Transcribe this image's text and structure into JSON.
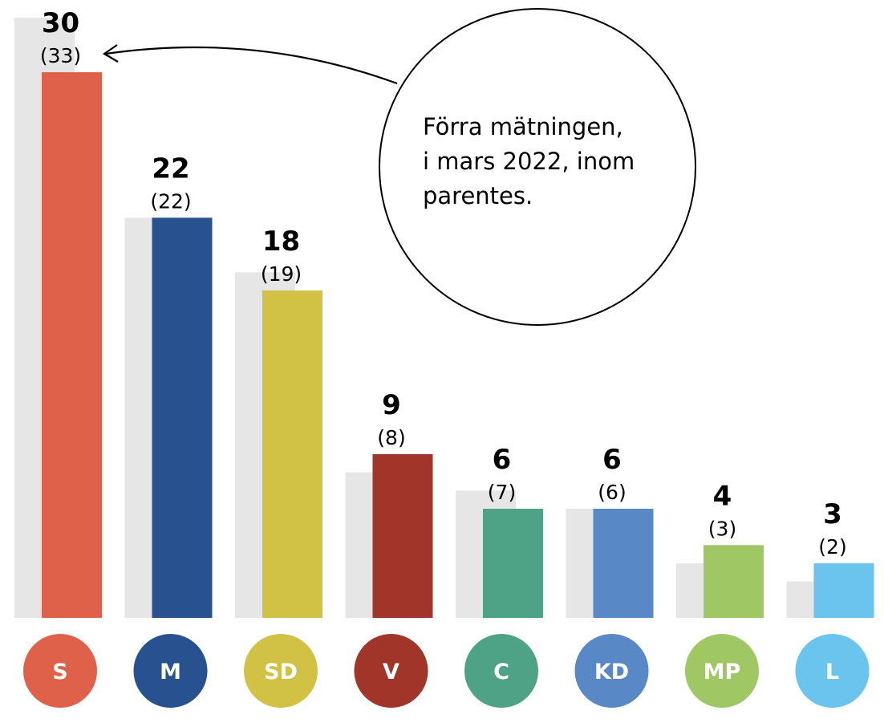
{
  "chart_data": {
    "type": "bar",
    "categories": [
      "S",
      "M",
      "SD",
      "V",
      "C",
      "KD",
      "MP",
      "L"
    ],
    "series": [
      {
        "values": [
          30,
          22,
          18,
          9,
          6,
          6,
          4,
          3
        ]
      },
      {
        "values": [
          33,
          22,
          19,
          8,
          7,
          6,
          3,
          2
        ]
      }
    ],
    "current_labels": [
      "30",
      "22",
      "18",
      "9",
      "6",
      "6",
      "4",
      "3"
    ],
    "previous_labels": [
      "(33)",
      "(22)",
      "(19)",
      "(8)",
      "(7)",
      "(6)",
      "(3)",
      "(2)"
    ],
    "party_colors": [
      "#e0614a",
      "#27528f",
      "#d1c145",
      "#a1352a",
      "#4ea387",
      "#5889c6",
      "#9fc865",
      "#6ac4ee"
    ],
    "previous_color": "#e6e6e6",
    "ylim": [
      0,
      33
    ],
    "grid": false,
    "legend": "none"
  },
  "annotation": {
    "lines": [
      "Förra mätningen,",
      "i mars 2022, inom",
      "parentes."
    ]
  }
}
